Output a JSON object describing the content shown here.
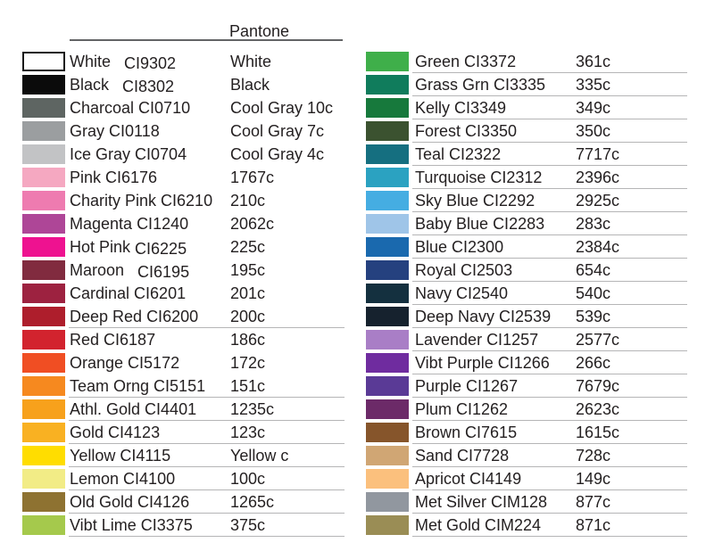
{
  "header": {
    "pantone_label": "Pantone"
  },
  "chart_data": {
    "type": "table",
    "title": "Pantone",
    "columns": [
      "swatch",
      "name",
      "code",
      "pantone"
    ],
    "left": [
      {
        "name": "White",
        "code": "CI9302",
        "pantone": "White",
        "hex": "#FFFFFF",
        "border": "#1A1A1A",
        "underline": false,
        "wide_code_gap": true,
        "code_drop": true
      },
      {
        "name": "Black",
        "code": "CI8302",
        "pantone": "Black",
        "hex": "#0B0B0B",
        "underline": false,
        "wide_code_gap": true,
        "code_drop": true
      },
      {
        "name": "Charcoal",
        "code": "CI0710",
        "pantone": "Cool Gray 10c",
        "hex": "#5E6562",
        "underline": false
      },
      {
        "name": "Gray",
        "code": "CI0118",
        "pantone": "Cool Gray 7c",
        "hex": "#9B9EA0",
        "underline": false
      },
      {
        "name": "Ice Gray",
        "code": "CI0704",
        "pantone": "Cool Gray 4c",
        "hex": "#C2C3C5",
        "underline": false
      },
      {
        "name": "Pink",
        "code": "CI6176",
        "pantone": "1767c",
        "hex": "#F5A8C1",
        "underline": false
      },
      {
        "name": "Charity Pink",
        "code": "CI6210",
        "pantone": "210c",
        "hex": "#EE7BB0",
        "underline": false
      },
      {
        "name": "Magenta",
        "code": "CI1240",
        "pantone": "2062c",
        "hex": "#AE4697",
        "underline": false
      },
      {
        "name": "Hot Pink",
        "code": "CI6225",
        "pantone": "225c",
        "hex": "#EE1290",
        "underline": false,
        "code_drop": true
      },
      {
        "name": "Maroon",
        "code": "CI6195",
        "pantone": "195c",
        "hex": "#812B3F",
        "underline": false,
        "wide_code_gap": true,
        "code_drop": true
      },
      {
        "name": "Cardinal",
        "code": "CI6201",
        "pantone": "201c",
        "hex": "#9D2240",
        "underline": false
      },
      {
        "name": "Deep Red",
        "code": "CI6200",
        "pantone": "200c",
        "hex": "#AE1E2C",
        "underline": true
      },
      {
        "name": "Red",
        "code": "CI6187",
        "pantone": "186c",
        "hex": "#D2232E",
        "underline": false
      },
      {
        "name": "Orange",
        "code": "CI5172",
        "pantone": "172c",
        "hex": "#F04E23",
        "underline": false
      },
      {
        "name": "Team Orng",
        "code": "CI5151",
        "pantone": "151c",
        "hex": "#F6891F",
        "underline": true
      },
      {
        "name": "Athl. Gold",
        "code": "CI4401",
        "pantone": "1235c",
        "hex": "#F7A11C",
        "underline": true
      },
      {
        "name": "Gold",
        "code": "CI4123",
        "pantone": "123c",
        "hex": "#F9B122",
        "underline": true
      },
      {
        "name": "Yellow",
        "code": "CI4115",
        "pantone": "Yellow c",
        "hex": "#FFDD00",
        "underline": true
      },
      {
        "name": "Lemon",
        "code": "CI4100",
        "pantone": "100c",
        "hex": "#F2EC86",
        "underline": true
      },
      {
        "name": "Old Gold",
        "code": "CI4126",
        "pantone": "1265c",
        "hex": "#8E7231",
        "underline": true
      },
      {
        "name": "Vibt Lime",
        "code": "CI3375",
        "pantone": "375c",
        "hex": "#A5C94C",
        "underline": true
      }
    ],
    "right": [
      {
        "name": "Green",
        "code": "CI3372",
        "pantone": "361c",
        "hex": "#3FAF4A",
        "underline": true
      },
      {
        "name": "Grass Grn",
        "code": "CI3335",
        "pantone": "335c",
        "hex": "#107C5C",
        "underline": true
      },
      {
        "name": "Kelly",
        "code": "CI3349",
        "pantone": "349c",
        "hex": "#17793C",
        "underline": true
      },
      {
        "name": "Forest",
        "code": "CI3350",
        "pantone": "350c",
        "hex": "#3B5230",
        "underline": true
      },
      {
        "name": "Teal",
        "code": "CI2322",
        "pantone": "7717c",
        "hex": "#156F80",
        "underline": true
      },
      {
        "name": "Turquoise",
        "code": "CI2312",
        "pantone": "2396c",
        "hex": "#2BA2C1",
        "underline": true
      },
      {
        "name": "Sky Blue",
        "code": "CI2292",
        "pantone": "2925c",
        "hex": "#45ADE2",
        "underline": true
      },
      {
        "name": "Baby Blue",
        "code": "CI2283",
        "pantone": "283c",
        "hex": "#9FC5E8",
        "underline": true
      },
      {
        "name": "Blue",
        "code": "CI2300",
        "pantone": "2384c",
        "hex": "#1A69AE",
        "underline": true
      },
      {
        "name": "Royal",
        "code": "CI2503",
        "pantone": "654c",
        "hex": "#25417F",
        "underline": true
      },
      {
        "name": "Navy",
        "code": "CI2540",
        "pantone": "540c",
        "hex": "#14303F",
        "underline": true
      },
      {
        "name": "Deep Navy",
        "code": "CI2539",
        "pantone": "539c",
        "hex": "#16222E",
        "underline": true
      },
      {
        "name": "Lavender",
        "code": "CI1257",
        "pantone": "2577c",
        "hex": "#A97EC6",
        "underline": true
      },
      {
        "name": "Vibt Purple",
        "code": "CI1266",
        "pantone": "266c",
        "hex": "#6F2C9F",
        "underline": true
      },
      {
        "name": "Purple",
        "code": "CI1267",
        "pantone": "7679c",
        "hex": "#5A3A96",
        "underline": true
      },
      {
        "name": "Plum",
        "code": "CI1262",
        "pantone": "2623c",
        "hex": "#6C2A68",
        "underline": true
      },
      {
        "name": "Brown",
        "code": "CI7615",
        "pantone": "1615c",
        "hex": "#86552B",
        "underline": true
      },
      {
        "name": "Sand",
        "code": "CI7728",
        "pantone": "728c",
        "hex": "#D0A674",
        "underline": true
      },
      {
        "name": "Apricot",
        "code": "CI4149",
        "pantone": "149c",
        "hex": "#FBC07D",
        "underline": true
      },
      {
        "name": "Met Silver",
        "code": "CIM128",
        "pantone": "877c",
        "hex": "#91979F",
        "underline": true
      },
      {
        "name": "Met Gold",
        "code": "CIM224",
        "pantone": "871c",
        "hex": "#9A8D55",
        "underline": true
      }
    ]
  }
}
